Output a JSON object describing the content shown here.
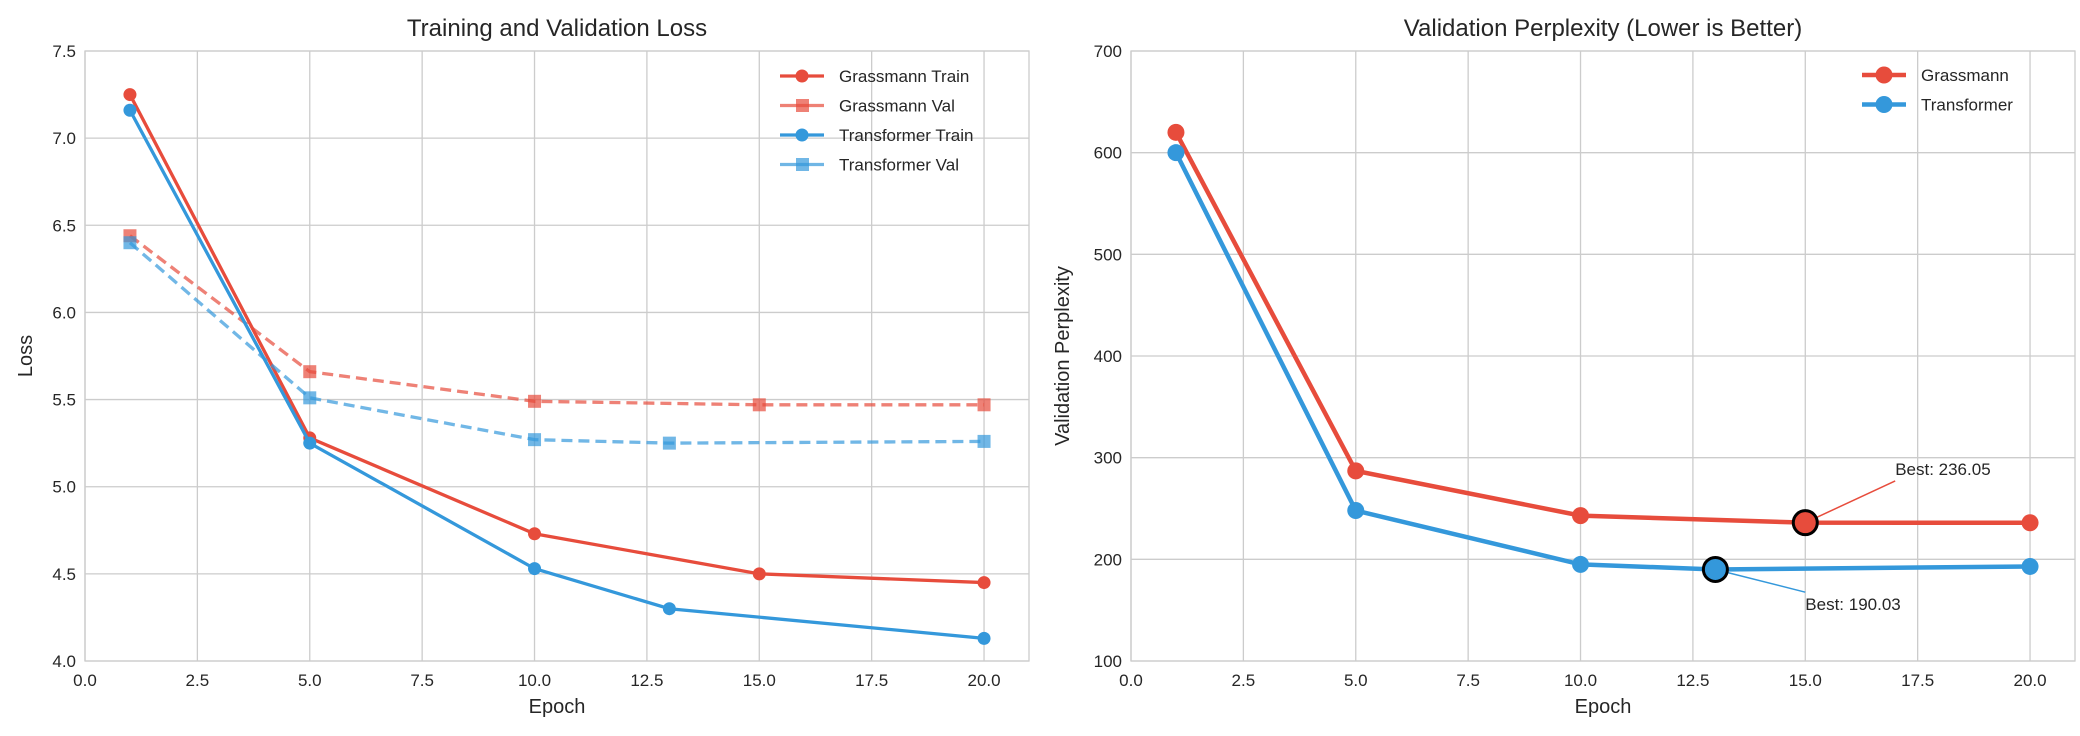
{
  "chart_data": [
    {
      "type": "line",
      "title": "Training and Validation Loss",
      "xlabel": "Epoch",
      "ylabel": "Loss",
      "xlim": [
        0,
        21
      ],
      "ylim": [
        4.0,
        7.5
      ],
      "xticks": [
        "0.0",
        "2.5",
        "5.0",
        "7.5",
        "10.0",
        "12.5",
        "15.0",
        "17.5",
        "20.0"
      ],
      "yticks": [
        "4.0",
        "4.5",
        "5.0",
        "5.5",
        "6.0",
        "6.5",
        "7.0",
        "7.5"
      ],
      "grid": true,
      "legend": "top-right",
      "series": [
        {
          "name": "Grassmann Train",
          "color": "#e74c3c",
          "style": "solid",
          "marker": "circle",
          "x": [
            1,
            5,
            10,
            15,
            20
          ],
          "y": [
            7.25,
            5.28,
            4.73,
            4.5,
            4.45
          ]
        },
        {
          "name": "Grassmann Val",
          "color": "#e74c3c",
          "style": "dashed",
          "marker": "square",
          "x": [
            1,
            5,
            10,
            15,
            20
          ],
          "y": [
            6.44,
            5.66,
            5.49,
            5.47,
            5.47
          ]
        },
        {
          "name": "Transformer Train",
          "color": "#3498db",
          "style": "solid",
          "marker": "circle",
          "x": [
            1,
            5,
            10,
            13,
            20
          ],
          "y": [
            7.16,
            5.25,
            4.53,
            4.3,
            4.13
          ]
        },
        {
          "name": "Transformer Val",
          "color": "#3498db",
          "style": "dashed",
          "marker": "square",
          "x": [
            1,
            5,
            10,
            13,
            20
          ],
          "y": [
            6.4,
            5.51,
            5.27,
            5.25,
            5.26
          ]
        }
      ]
    },
    {
      "type": "line",
      "title": "Validation Perplexity (Lower is Better)",
      "xlabel": "Epoch",
      "ylabel": "Validation Perplexity",
      "xlim": [
        0,
        21
      ],
      "ylim": [
        100,
        700
      ],
      "xticks": [
        "0.0",
        "2.5",
        "5.0",
        "7.5",
        "10.0",
        "12.5",
        "15.0",
        "17.5",
        "20.0"
      ],
      "yticks": [
        "100",
        "200",
        "300",
        "400",
        "500",
        "600",
        "700"
      ],
      "grid": true,
      "legend": "top-right",
      "series": [
        {
          "name": "Grassmann",
          "color": "#e74c3c",
          "x": [
            1,
            5,
            10,
            15,
            20
          ],
          "y": [
            620,
            287,
            243,
            236.05,
            236
          ]
        },
        {
          "name": "Transformer",
          "color": "#3498db",
          "x": [
            1,
            5,
            10,
            13,
            20
          ],
          "y": [
            600,
            248,
            195,
            190.03,
            193
          ]
        }
      ],
      "annotations": [
        {
          "text": "Best: 236.05",
          "x": 15,
          "y": 236.05,
          "text_x": 17,
          "text_y": 283,
          "color": "#e74c3c"
        },
        {
          "text": "Best: 190.03",
          "x": 13,
          "y": 190.03,
          "text_x": 15,
          "text_y": 150,
          "color": "#3498db"
        }
      ]
    }
  ]
}
